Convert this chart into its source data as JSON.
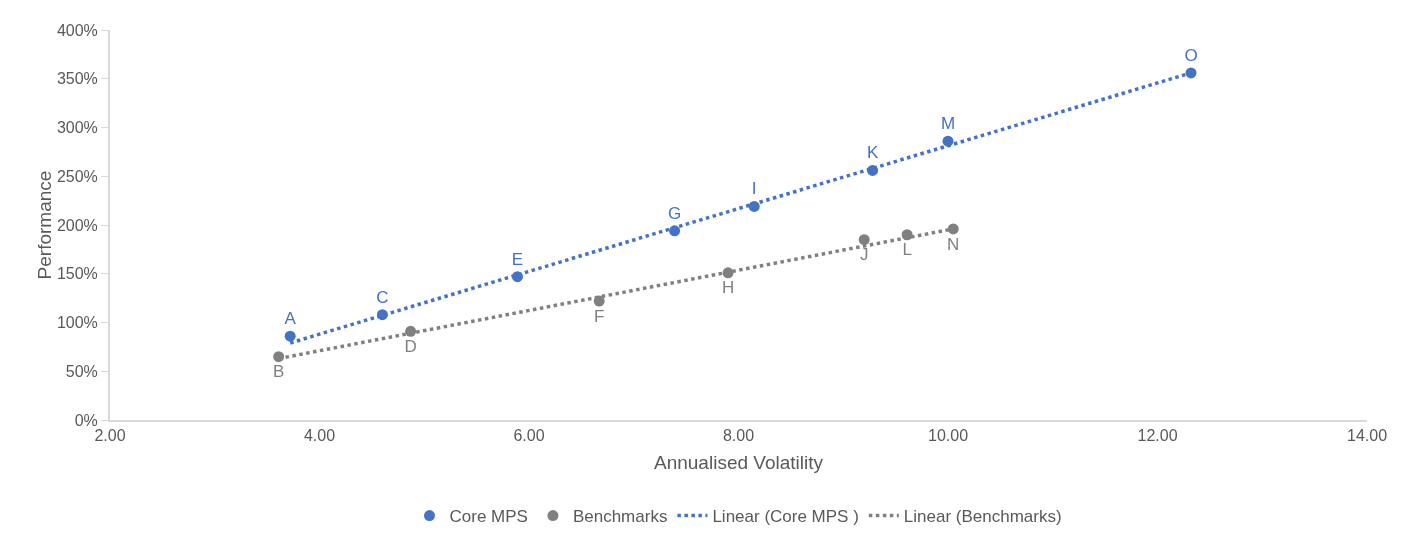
{
  "chart_data": {
    "type": "scatter",
    "xlabel": "Annualised Volatility",
    "ylabel": "Performance",
    "xlim": [
      2,
      14
    ],
    "xticks": [
      {
        "value": 2,
        "label": "2.00"
      },
      {
        "value": 4,
        "label": "4.00"
      },
      {
        "value": 6,
        "label": "6.00"
      },
      {
        "value": 8,
        "label": "8.00"
      },
      {
        "value": 10,
        "label": "10.00"
      },
      {
        "value": 12,
        "label": "12.00"
      },
      {
        "value": 14,
        "label": "14.00"
      }
    ],
    "ylim": [
      0,
      400
    ],
    "yticks": [
      {
        "value": 0,
        "label": "0%"
      },
      {
        "value": 50,
        "label": "50%"
      },
      {
        "value": 100,
        "label": "100%"
      },
      {
        "value": 150,
        "label": "150%"
      },
      {
        "value": 200,
        "label": "200%"
      },
      {
        "value": 250,
        "label": "250%"
      },
      {
        "value": 300,
        "label": "300%"
      },
      {
        "value": 350,
        "label": "350%"
      },
      {
        "value": 400,
        "label": "400%"
      }
    ],
    "grid": false,
    "legend": "bottom",
    "marker": "circle",
    "series": [
      {
        "name": "Core MPS",
        "color": "#4472c4",
        "x": [
          3.72,
          4.6,
          5.89,
          7.39,
          8.15,
          9.28,
          10.0,
          12.32
        ],
        "values": [
          86,
          108,
          147,
          194,
          219,
          256,
          286,
          356
        ],
        "value_labels": [
          "A",
          "C",
          "E",
          "G",
          "I",
          "K",
          "M",
          "O"
        ]
      },
      {
        "name": "Benchmarks",
        "color": "#808080",
        "x": [
          3.61,
          4.87,
          6.67,
          7.9,
          9.2,
          9.61,
          10.05
        ],
        "values": [
          65,
          91,
          122,
          151,
          185,
          190,
          196
        ],
        "value_labels": [
          "B",
          "D",
          "F",
          "H",
          "J",
          "L",
          "N"
        ]
      },
      {
        "name": "Linear (Core MPS )",
        "type": "line",
        "color": "#4472c4",
        "line_style": "dotted",
        "marker": "none",
        "x": [
          3.72,
          12.32
        ],
        "values": [
          79,
          356
        ]
      },
      {
        "name": "Linear (Benchmarks)",
        "type": "line",
        "color": "#808080",
        "line_style": "dotted",
        "marker": "none",
        "x": [
          3.61,
          10.05
        ],
        "values": [
          63,
          196
        ]
      }
    ]
  }
}
